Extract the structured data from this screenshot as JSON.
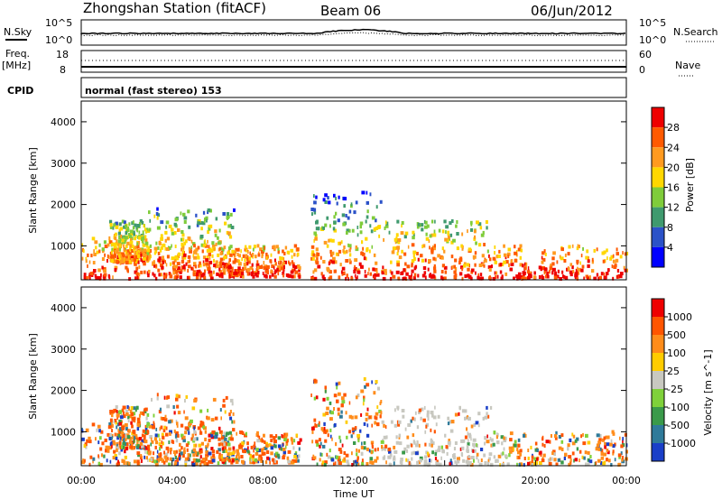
{
  "header": {
    "station": "Zhongshan Station (fitACF)",
    "beam": "Beam 06",
    "date": "06/Jun/2012"
  },
  "status_panel": {
    "nsky_label": "N.Sky",
    "nsearch_label": "N.Search",
    "noise_ticks_left": [
      "10^5",
      "10^0"
    ],
    "noise_ticks_right": [
      "10^5",
      "10^0"
    ],
    "freq_label_1": "Freq.",
    "freq_label_2": "[MHz]",
    "freq_ticks": [
      "18",
      "8"
    ],
    "nave_label": "Nave",
    "nave_ticks": [
      "60",
      "0"
    ],
    "cpid_label": "CPID",
    "cpid_value": "normal (fast stereo) 153"
  },
  "chart_data": [
    {
      "type": "heatmap",
      "name": "power",
      "ylabel": "Slant Range [km]",
      "xlabel": "",
      "yticks": [
        "1000",
        "2000",
        "3000",
        "4000"
      ],
      "ylim": [
        180,
        4500
      ],
      "colorbar_label": "Power [dB]",
      "colorbar_ticks": [
        "4",
        "8",
        "12",
        "16",
        "20",
        "24",
        "28"
      ],
      "colorbar_colors": [
        "#0000ff",
        "#2b52c8",
        "#3f9a6e",
        "#7fcc3a",
        "#ffd700",
        "#ff9a1f",
        "#ff5a00",
        "#ee0000"
      ]
    },
    {
      "type": "heatmap",
      "name": "velocity",
      "ylabel": "Slant Range [km]",
      "xlabel": "Time UT",
      "yticks": [
        "1000",
        "2000",
        "3000",
        "4000"
      ],
      "ylim": [
        180,
        4500
      ],
      "xticks": [
        "00:00",
        "04:00",
        "08:00",
        "12:00",
        "16:00",
        "20:00",
        "00:00"
      ],
      "colorbar_label": "Velocity  [m s^-1]",
      "colorbar_ticks": [
        "1000",
        "500",
        "100",
        "25",
        "-25",
        "-100",
        "-500",
        "-1000"
      ],
      "colorbar_colors": [
        "#1a3fc8",
        "#2f7a9a",
        "#3a9a4a",
        "#7fd13a",
        "#c8c8c0",
        "#ffcc00",
        "#ff8c1a",
        "#ff5500",
        "#ee0000"
      ]
    }
  ]
}
